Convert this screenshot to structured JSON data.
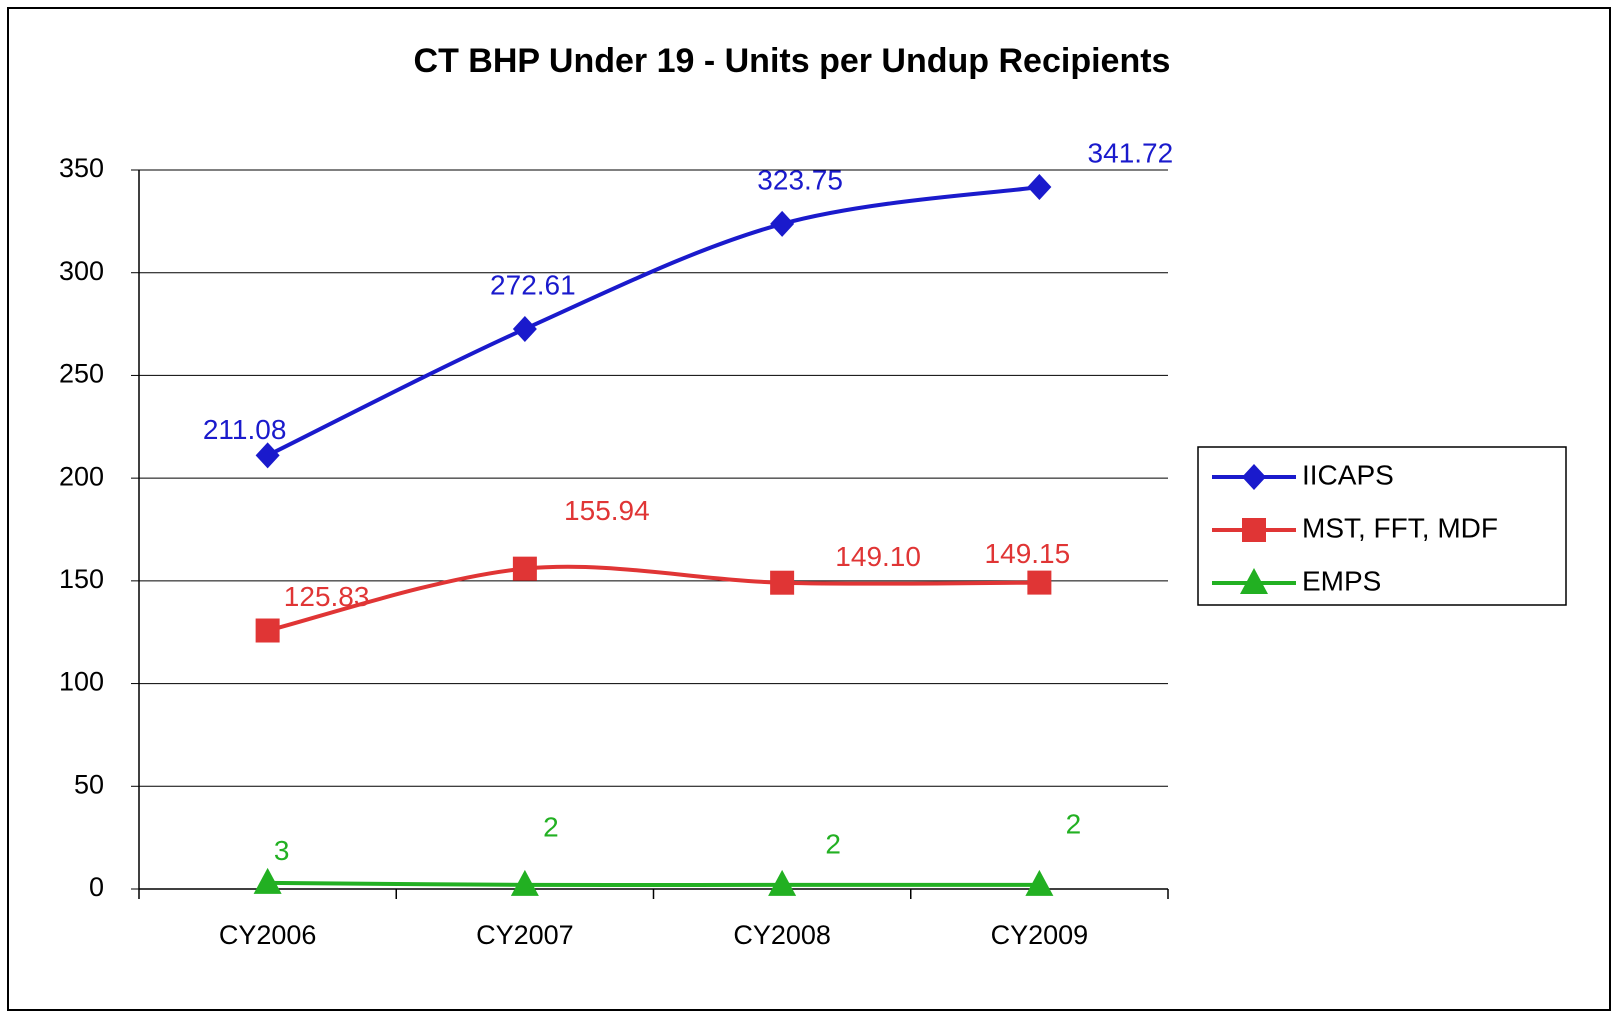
{
  "chart_data": {
    "type": "line",
    "title": "CT BHP Under 19 - Units per Undup Recipients",
    "categories": [
      "CY2006",
      "CY2007",
      "CY2008",
      "CY2009"
    ],
    "series": [
      {
        "name": "IICAPS",
        "color": "#1a1acc",
        "marker": "diamond",
        "values": [
          211.08,
          272.61,
          323.75,
          341.72
        ],
        "value_labels": [
          "211.08",
          "272.61",
          "323.75",
          "341.72"
        ]
      },
      {
        "name": "MST, FFT, MDF",
        "color": "#e03535",
        "marker": "square",
        "values": [
          125.83,
          155.94,
          149.1,
          149.15
        ],
        "value_labels": [
          "125.83",
          "155.94",
          "149.10",
          "149.15"
        ]
      },
      {
        "name": "EMPS",
        "color": "#22b022",
        "marker": "triangle",
        "values": [
          3,
          2,
          2,
          2
        ],
        "value_labels": [
          "3",
          "2",
          "2",
          "2"
        ]
      }
    ],
    "ylim": [
      0,
      350
    ],
    "yticks": [
      0,
      50,
      100,
      150,
      200,
      250,
      300,
      350
    ],
    "grid": true,
    "legend": "right"
  }
}
